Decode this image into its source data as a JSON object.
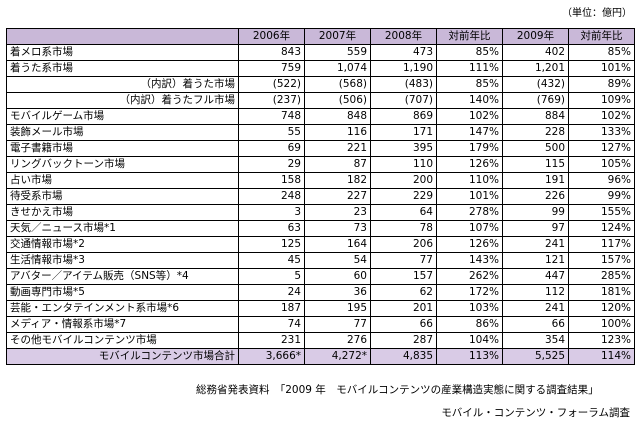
{
  "unit_note": "（単位：億円）",
  "headers": [
    "",
    "2006年",
    "2007年",
    "2008年",
    "対前年比",
    "2009年",
    "対前年比"
  ],
  "rows": [
    {
      "label": "着メロ系市場",
      "indent": false,
      "values": [
        "843",
        "559",
        "473",
        "85%",
        "402",
        "85%"
      ]
    },
    {
      "label": "着うた系市場",
      "indent": false,
      "values": [
        "759",
        "1,074",
        "1,190",
        "111%",
        "1,201",
        "101%"
      ]
    },
    {
      "label": "（内訳）着うた市場",
      "indent": true,
      "values": [
        "(522)",
        "(568)",
        "(483)",
        "85%",
        "(432)",
        "89%"
      ]
    },
    {
      "label": "（内訳）着うたフル市場",
      "indent": true,
      "values": [
        "(237)",
        "(506)",
        "(707)",
        "140%",
        "(769)",
        "109%"
      ]
    },
    {
      "label": "モバイルゲーム市場",
      "indent": false,
      "values": [
        "748",
        "848",
        "869",
        "102%",
        "884",
        "102%"
      ]
    },
    {
      "label": "装飾メール市場",
      "indent": false,
      "values": [
        "55",
        "116",
        "171",
        "147%",
        "228",
        "133%"
      ]
    },
    {
      "label": "電子書籍市場",
      "indent": false,
      "values": [
        "69",
        "221",
        "395",
        "179%",
        "500",
        "127%"
      ]
    },
    {
      "label": "リングバックトーン市場",
      "indent": false,
      "values": [
        "29",
        "87",
        "110",
        "126%",
        "115",
        "105%"
      ]
    },
    {
      "label": "占い市場",
      "indent": false,
      "values": [
        "158",
        "182",
        "200",
        "110%",
        "191",
        "96%"
      ]
    },
    {
      "label": "待受系市場",
      "indent": false,
      "values": [
        "248",
        "227",
        "229",
        "101%",
        "226",
        "99%"
      ]
    },
    {
      "label": "きせかえ市場",
      "indent": false,
      "values": [
        "3",
        "23",
        "64",
        "278%",
        "99",
        "155%"
      ]
    },
    {
      "label": "天気／ニュース市場*1",
      "indent": false,
      "values": [
        "63",
        "73",
        "78",
        "107%",
        "97",
        "124%"
      ]
    },
    {
      "label": "交通情報市場*2",
      "indent": false,
      "values": [
        "125",
        "164",
        "206",
        "126%",
        "241",
        "117%"
      ]
    },
    {
      "label": "生活情報市場*3",
      "indent": false,
      "values": [
        "45",
        "54",
        "77",
        "143%",
        "121",
        "157%"
      ]
    },
    {
      "label": "アバター／アイテム販売（SNS等）*4",
      "indent": false,
      "values": [
        "5",
        "60",
        "157",
        "262%",
        "447",
        "285%"
      ]
    },
    {
      "label": "動画専門市場*5",
      "indent": false,
      "values": [
        "24",
        "36",
        "62",
        "172%",
        "112",
        "181%"
      ]
    },
    {
      "label": "芸能・エンタテインメント系市場*6",
      "indent": false,
      "values": [
        "187",
        "195",
        "201",
        "103%",
        "241",
        "120%"
      ]
    },
    {
      "label": "メディア・情報系市場*7",
      "indent": false,
      "values": [
        "74",
        "77",
        "66",
        "86%",
        "66",
        "100%"
      ]
    },
    {
      "label": "その他モバイルコンテンツ市場",
      "indent": false,
      "values": [
        "231",
        "276",
        "287",
        "104%",
        "354",
        "123%"
      ]
    }
  ],
  "total": {
    "label": "モバイルコンテンツ市場合計",
    "values": [
      "3,666*",
      "4,272*",
      "4,835",
      "113%",
      "5,525",
      "114%"
    ]
  },
  "source": "総務省発表資料　「2009 年　モバイルコンテンツの産業構造実態に関する調査結果」",
  "credit": "モバイル・コンテンツ・フォーラム調査",
  "colors": {
    "header_bg": "#c9b8d8",
    "total_bg": "#d9cbe6"
  }
}
